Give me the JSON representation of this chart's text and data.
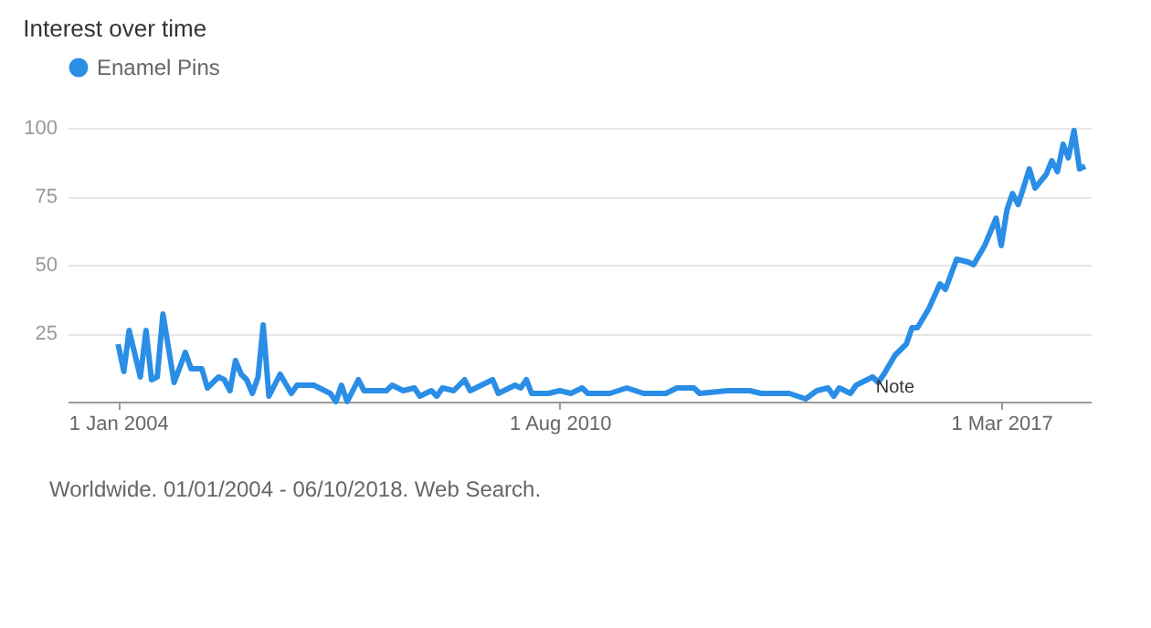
{
  "chart_data": {
    "type": "line",
    "title": "Interest over time",
    "x": [
      "2004-01",
      "2004-02",
      "2004-03",
      "2004-05",
      "2004-06",
      "2004-07",
      "2004-08",
      "2004-09",
      "2004-11",
      "2005-01",
      "2005-02",
      "2005-04",
      "2005-05",
      "2005-07",
      "2005-08",
      "2005-09",
      "2005-10",
      "2005-11",
      "2005-12",
      "2006-01",
      "2006-02",
      "2006-03",
      "2006-04",
      "2006-06",
      "2006-08",
      "2006-09",
      "2006-12",
      "2007-03",
      "2007-04",
      "2007-05",
      "2007-06",
      "2007-08",
      "2007-09",
      "2008-01",
      "2008-02",
      "2008-04",
      "2008-06",
      "2008-07",
      "2008-09",
      "2008-10",
      "2008-11",
      "2009-01",
      "2009-03",
      "2009-04",
      "2009-08",
      "2009-09",
      "2009-12",
      "2010-01",
      "2010-02",
      "2010-03",
      "2010-06",
      "2010-08",
      "2010-10",
      "2010-12",
      "2011-01",
      "2011-05",
      "2011-08",
      "2011-11",
      "2012-03",
      "2012-05",
      "2012-08",
      "2012-09",
      "2013-02",
      "2013-06",
      "2013-08",
      "2014-01",
      "2014-04",
      "2014-06",
      "2014-08",
      "2014-09",
      "2014-10",
      "2014-12",
      "2015-01",
      "2015-04",
      "2015-05",
      "2015-06",
      "2015-08",
      "2015-10",
      "2015-11",
      "2015-12",
      "2016-02",
      "2016-04",
      "2016-05",
      "2016-07",
      "2016-09",
      "2016-10",
      "2016-12",
      "2017-02",
      "2017-03",
      "2017-04",
      "2017-05",
      "2017-06",
      "2017-08",
      "2017-09",
      "2017-11",
      "2017-12",
      "2018-01",
      "2018-02",
      "2018-03",
      "2018-04",
      "2018-05",
      "2018-06"
    ],
    "series": [
      {
        "name": "Enamel Pins",
        "color": "#2a8ee6",
        "values": [
          21,
          11,
          26,
          9,
          26,
          8,
          9,
          32,
          7,
          18,
          12,
          12,
          5,
          9,
          8,
          4,
          15,
          10,
          8,
          3,
          9,
          28,
          2,
          10,
          3,
          6,
          6,
          3,
          0,
          6,
          0,
          8,
          4,
          4,
          6,
          4,
          5,
          2,
          4,
          2,
          5,
          4,
          8,
          4,
          8,
          3,
          6,
          5,
          8,
          3,
          3,
          4,
          3,
          5,
          3,
          3,
          5,
          3,
          3,
          5,
          5,
          3,
          4,
          4,
          3,
          3,
          1,
          4,
          5,
          2,
          5,
          3,
          6,
          9,
          7,
          10,
          17,
          21,
          27,
          27,
          34,
          43,
          41,
          52,
          51,
          50,
          57,
          67,
          57,
          70,
          76,
          72,
          85,
          78,
          83,
          88,
          84,
          94,
          89,
          99,
          85,
          86
        ]
      }
    ],
    "xlim": [
      "2003-04",
      "2018-07"
    ],
    "xticks": [
      {
        "value": "2004-01-01",
        "label": "1 Jan 2004"
      },
      {
        "value": "2010-08-01",
        "label": "1 Aug 2010"
      },
      {
        "value": "2017-03-01",
        "label": "1 Mar 2017"
      }
    ],
    "ylim": [
      0,
      100
    ],
    "yticks": [
      25,
      50,
      75,
      100
    ],
    "grid": "y",
    "legend": "top left",
    "marker": "none",
    "line_style": "solid",
    "annotations": [
      "Note",
      "Worldwide. 01/01/2004 - 06/10/2018. Web Search."
    ]
  }
}
